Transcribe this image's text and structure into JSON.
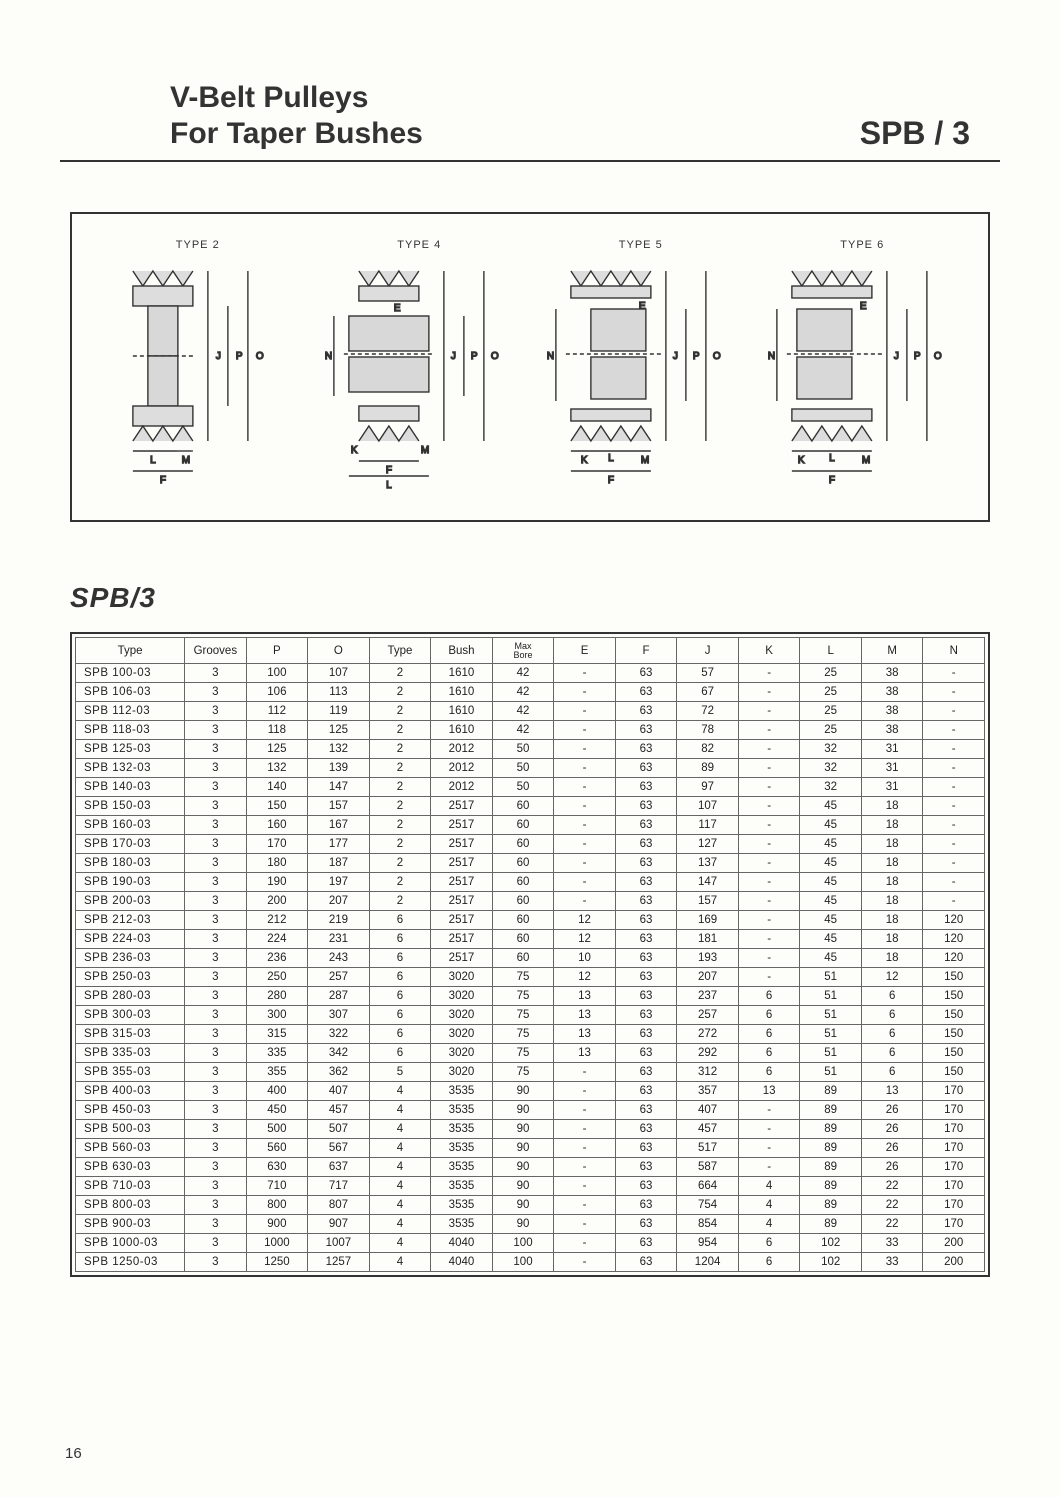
{
  "header": {
    "title_line1": "V-Belt  Pulleys",
    "title_line2": "For Taper Bushes",
    "code": "SPB / 3"
  },
  "diagrams": {
    "labels": [
      "TYPE 2",
      "TYPE 4",
      "TYPE 5",
      "TYPE 6"
    ]
  },
  "section_title": "SPB/3",
  "table": {
    "columns": [
      "Type",
      "Grooves",
      "P",
      "O",
      "Type",
      "Bush",
      "Max Bore",
      "E",
      "F",
      "J",
      "K",
      "L",
      "M",
      "N"
    ],
    "col_classes": [
      "col-type",
      "col-std",
      "col-std",
      "col-std",
      "col-std",
      "col-std",
      "col-std",
      "col-std",
      "col-std",
      "col-std",
      "col-std",
      "col-std",
      "col-std",
      "col-std"
    ],
    "rows": [
      [
        "SPB  100-03",
        "3",
        "100",
        "107",
        "2",
        "1610",
        "42",
        "-",
        "63",
        "57",
        "-",
        "25",
        "38",
        "-"
      ],
      [
        "SPB  106-03",
        "3",
        "106",
        "113",
        "2",
        "1610",
        "42",
        "-",
        "63",
        "67",
        "-",
        "25",
        "38",
        "-"
      ],
      [
        "SPB  112-03",
        "3",
        "112",
        "119",
        "2",
        "1610",
        "42",
        "-",
        "63",
        "72",
        "-",
        "25",
        "38",
        "-"
      ],
      [
        "SPB  118-03",
        "3",
        "118",
        "125",
        "2",
        "1610",
        "42",
        "-",
        "63",
        "78",
        "-",
        "25",
        "38",
        "-"
      ],
      [
        "SPB  125-03",
        "3",
        "125",
        "132",
        "2",
        "2012",
        "50",
        "-",
        "63",
        "82",
        "-",
        "32",
        "31",
        "-"
      ],
      [
        "SPB  132-03",
        "3",
        "132",
        "139",
        "2",
        "2012",
        "50",
        "-",
        "63",
        "89",
        "-",
        "32",
        "31",
        "-"
      ],
      [
        "SPB  140-03",
        "3",
        "140",
        "147",
        "2",
        "2012",
        "50",
        "-",
        "63",
        "97",
        "-",
        "32",
        "31",
        "-"
      ],
      [
        "SPB  150-03",
        "3",
        "150",
        "157",
        "2",
        "2517",
        "60",
        "-",
        "63",
        "107",
        "-",
        "45",
        "18",
        "-"
      ],
      [
        "SPB  160-03",
        "3",
        "160",
        "167",
        "2",
        "2517",
        "60",
        "-",
        "63",
        "117",
        "-",
        "45",
        "18",
        "-"
      ],
      [
        "SPB  170-03",
        "3",
        "170",
        "177",
        "2",
        "2517",
        "60",
        "-",
        "63",
        "127",
        "-",
        "45",
        "18",
        "-"
      ],
      [
        "SPB  180-03",
        "3",
        "180",
        "187",
        "2",
        "2517",
        "60",
        "-",
        "63",
        "137",
        "-",
        "45",
        "18",
        "-"
      ],
      [
        "SPB  190-03",
        "3",
        "190",
        "197",
        "2",
        "2517",
        "60",
        "-",
        "63",
        "147",
        "-",
        "45",
        "18",
        "-"
      ],
      [
        "SPB  200-03",
        "3",
        "200",
        "207",
        "2",
        "2517",
        "60",
        "-",
        "63",
        "157",
        "-",
        "45",
        "18",
        "-"
      ],
      [
        "SPB  212-03",
        "3",
        "212",
        "219",
        "6",
        "2517",
        "60",
        "12",
        "63",
        "169",
        "-",
        "45",
        "18",
        "120"
      ],
      [
        "SPB  224-03",
        "3",
        "224",
        "231",
        "6",
        "2517",
        "60",
        "12",
        "63",
        "181",
        "-",
        "45",
        "18",
        "120"
      ],
      [
        "SPB  236-03",
        "3",
        "236",
        "243",
        "6",
        "2517",
        "60",
        "10",
        "63",
        "193",
        "-",
        "45",
        "18",
        "120"
      ],
      [
        "SPB  250-03",
        "3",
        "250",
        "257",
        "6",
        "3020",
        "75",
        "12",
        "63",
        "207",
        "-",
        "51",
        "12",
        "150"
      ],
      [
        "SPB  280-03",
        "3",
        "280",
        "287",
        "6",
        "3020",
        "75",
        "13",
        "63",
        "237",
        "6",
        "51",
        "6",
        "150"
      ],
      [
        "SPB  300-03",
        "3",
        "300",
        "307",
        "6",
        "3020",
        "75",
        "13",
        "63",
        "257",
        "6",
        "51",
        "6",
        "150"
      ],
      [
        "SPB  315-03",
        "3",
        "315",
        "322",
        "6",
        "3020",
        "75",
        "13",
        "63",
        "272",
        "6",
        "51",
        "6",
        "150"
      ],
      [
        "SPB  335-03",
        "3",
        "335",
        "342",
        "6",
        "3020",
        "75",
        "13",
        "63",
        "292",
        "6",
        "51",
        "6",
        "150"
      ],
      [
        "SPB  355-03",
        "3",
        "355",
        "362",
        "5",
        "3020",
        "75",
        "-",
        "63",
        "312",
        "6",
        "51",
        "6",
        "150"
      ],
      [
        "SPB  400-03",
        "3",
        "400",
        "407",
        "4",
        "3535",
        "90",
        "-",
        "63",
        "357",
        "13",
        "89",
        "13",
        "170"
      ],
      [
        "SPB  450-03",
        "3",
        "450",
        "457",
        "4",
        "3535",
        "90",
        "-",
        "63",
        "407",
        "-",
        "89",
        "26",
        "170"
      ],
      [
        "SPB  500-03",
        "3",
        "500",
        "507",
        "4",
        "3535",
        "90",
        "-",
        "63",
        "457",
        "-",
        "89",
        "26",
        "170"
      ],
      [
        "SPB  560-03",
        "3",
        "560",
        "567",
        "4",
        "3535",
        "90",
        "-",
        "63",
        "517",
        "-",
        "89",
        "26",
        "170"
      ],
      [
        "SPB  630-03",
        "3",
        "630",
        "637",
        "4",
        "3535",
        "90",
        "-",
        "63",
        "587",
        "-",
        "89",
        "26",
        "170"
      ],
      [
        "SPB  710-03",
        "3",
        "710",
        "717",
        "4",
        "3535",
        "90",
        "-",
        "63",
        "664",
        "4",
        "89",
        "22",
        "170"
      ],
      [
        "SPB  800-03",
        "3",
        "800",
        "807",
        "4",
        "3535",
        "90",
        "-",
        "63",
        "754",
        "4",
        "89",
        "22",
        "170"
      ],
      [
        "SPB  900-03",
        "3",
        "900",
        "907",
        "4",
        "3535",
        "90",
        "-",
        "63",
        "854",
        "4",
        "89",
        "22",
        "170"
      ],
      [
        "SPB  1000-03",
        "3",
        "1000",
        "1007",
        "4",
        "4040",
        "100",
        "-",
        "63",
        "954",
        "6",
        "102",
        "33",
        "200"
      ],
      [
        "SPB  1250-03",
        "3",
        "1250",
        "1257",
        "4",
        "4040",
        "100",
        "-",
        "63",
        "1204",
        "6",
        "102",
        "33",
        "200"
      ]
    ]
  },
  "page_number": "16"
}
